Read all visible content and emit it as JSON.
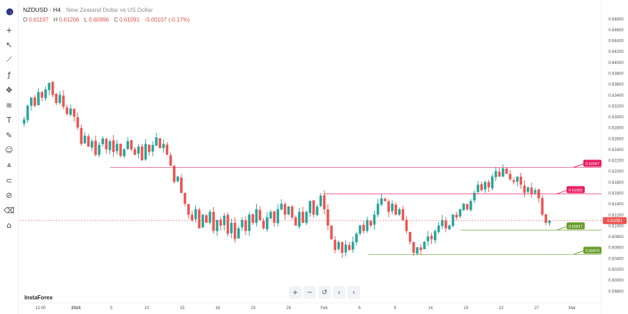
{
  "header": {
    "symbol": "NZDUSD · H4",
    "description": "New Zealand Dollar vs US Dollar"
  },
  "ohlc": {
    "o_label": "O",
    "o": "0.61197",
    "h_label": "H",
    "h": "0.61206",
    "l_label": "L",
    "l": "0.60996",
    "c_label": "C",
    "c": "0.61091",
    "change": "-0.00107 (-0.17%)"
  },
  "brand": "InstaForex",
  "toolbar": [
    {
      "icon": "crosshair-icon",
      "glyph": "+"
    },
    {
      "icon": "cursor-icon",
      "glyph": "↖"
    },
    {
      "icon": "trend-line-icon",
      "glyph": "⟋"
    },
    {
      "icon": "fx-indicator-icon",
      "glyph": "ƒ"
    },
    {
      "icon": "pattern-icon",
      "glyph": "✥"
    },
    {
      "icon": "fibonacci-icon",
      "glyph": "≋"
    },
    {
      "icon": "text-tool-icon",
      "glyph": "T"
    },
    {
      "icon": "brush-icon",
      "glyph": "✎"
    },
    {
      "icon": "emoji-icon",
      "glyph": "☺"
    },
    {
      "icon": "measure-icon",
      "glyph": "⩓"
    },
    {
      "icon": "magnet-icon",
      "glyph": "⊂"
    },
    {
      "icon": "lock-drawing-icon",
      "glyph": "⊘"
    },
    {
      "icon": "trash-icon",
      "glyph": "⌫"
    },
    {
      "icon": "home-icon",
      "glyph": "⌂"
    }
  ],
  "controls": [
    {
      "name": "zoom-in-button",
      "glyph": "+"
    },
    {
      "name": "zoom-out-button",
      "glyph": "−"
    },
    {
      "name": "reset-button",
      "glyph": "↺"
    },
    {
      "name": "scroll-left-button",
      "glyph": "‹"
    },
    {
      "name": "scroll-right-button",
      "glyph": "›"
    }
  ],
  "colors": {
    "up": "#26a69a",
    "down": "#ef5350",
    "level_red": "#e91e63",
    "level_green": "#6b9d2e",
    "current": "#ef5350"
  },
  "chart_data": {
    "type": "candlestick",
    "ylim": [
      0.59733,
      0.64938
    ],
    "yticks": [
      "0.64800",
      "0.64600",
      "0.64400",
      "0.64200",
      "0.64000",
      "0.63800",
      "0.63600",
      "0.63400",
      "0.63200",
      "0.63000",
      "0.62800",
      "0.62600",
      "0.62400",
      "0.62200",
      "0.62000",
      "0.61800",
      "0.61600",
      "0.61400",
      "0.61200",
      "0.61000",
      "0.60800",
      "0.60600",
      "0.60400",
      "0.60200",
      "0.60000",
      "0.59800"
    ],
    "xticks": [
      "12:00",
      "2024",
      "5",
      "10",
      "15",
      "18",
      "23",
      "26",
      "Feb",
      "6",
      "9",
      "14",
      "19",
      "22",
      "27",
      "Mar"
    ],
    "current_price": "0.61091",
    "levels": [
      {
        "label": "0.62067",
        "value": 0.62067,
        "color": "red"
      },
      {
        "label": "0.61582",
        "value": 0.61582,
        "color": "red"
      },
      {
        "label": "0.60917",
        "value": 0.60917,
        "color": "green"
      },
      {
        "label": "0.60470",
        "value": 0.6047,
        "color": "green"
      }
    ],
    "path": [
      0.6295,
      0.632,
      0.6335,
      0.632,
      0.6345,
      0.6335,
      0.635,
      0.6362,
      0.634,
      0.6325,
      0.634,
      0.6318,
      0.6305,
      0.6315,
      0.63,
      0.628,
      0.625,
      0.6265,
      0.6245,
      0.6255,
      0.623,
      0.6248,
      0.626,
      0.624,
      0.6255,
      0.6235,
      0.625,
      0.6228,
      0.624,
      0.6255,
      0.624,
      0.623,
      0.6245,
      0.622,
      0.625,
      0.6235,
      0.6248,
      0.6262,
      0.6242,
      0.625,
      0.623,
      0.621,
      0.618,
      0.619,
      0.616,
      0.614,
      0.612,
      0.611,
      0.613,
      0.6095,
      0.612,
      0.6105,
      0.6125,
      0.609,
      0.611,
      0.61,
      0.6118,
      0.6085,
      0.6105,
      0.6075,
      0.6095,
      0.611,
      0.609,
      0.612,
      0.6105,
      0.613,
      0.611,
      0.6095,
      0.6115,
      0.6125,
      0.6105,
      0.613,
      0.614,
      0.612,
      0.6135,
      0.6115,
      0.61,
      0.6125,
      0.6105,
      0.6125,
      0.6145,
      0.612,
      0.6135,
      0.6155,
      0.613,
      0.61,
      0.6075,
      0.6055,
      0.607,
      0.605,
      0.6065,
      0.6055,
      0.607,
      0.6085,
      0.61,
      0.609,
      0.611,
      0.61,
      0.612,
      0.614,
      0.615,
      0.6145,
      0.6125,
      0.614,
      0.612,
      0.613,
      0.611,
      0.609,
      0.607,
      0.605,
      0.606,
      0.6055,
      0.607,
      0.608,
      0.6075,
      0.609,
      0.61,
      0.611,
      0.6095,
      0.61,
      0.612,
      0.6115,
      0.613,
      0.614,
      0.613,
      0.6145,
      0.616,
      0.6175,
      0.6165,
      0.618,
      0.617,
      0.619,
      0.62,
      0.619,
      0.6205,
      0.6195,
      0.6185,
      0.618,
      0.619,
      0.6175,
      0.616,
      0.617,
      0.6158,
      0.6165,
      0.615,
      0.612,
      0.6105,
      0.6109
    ]
  }
}
